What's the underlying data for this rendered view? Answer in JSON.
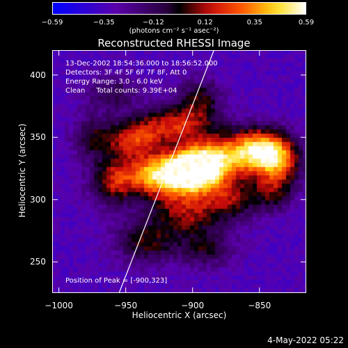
{
  "chart_data": {
    "type": "heatmap",
    "title": "Reconstructed RHESSI Image",
    "xlabel": "Heliocentric X (arcsec)",
    "ylabel": "Heliocentric Y (arcsec)",
    "xlim": [
      -1005,
      -815
    ],
    "ylim": [
      225,
      420
    ],
    "x_ticks": [
      "−1000",
      "−950",
      "−900",
      "−850"
    ],
    "x_tick_values": [
      -1000,
      -950,
      -900,
      -850
    ],
    "y_ticks": [
      "250",
      "300",
      "350",
      "400"
    ],
    "y_tick_values": [
      250,
      300,
      350,
      400
    ],
    "colorbar": {
      "min": -0.59,
      "max": 0.59,
      "ticks": [
        "−0.59",
        "−0.35",
        "−0.12",
        "0.12",
        "0.35",
        "0.59"
      ],
      "tick_values": [
        -0.59,
        -0.35,
        -0.12,
        0.12,
        0.35,
        0.59
      ],
      "units": "(photons cm⁻² s⁻¹ asec⁻²)"
    },
    "peak": {
      "x": -900,
      "y": 323
    },
    "limb_line": [
      [
        -955,
        225
      ],
      [
        -884,
        420
      ]
    ],
    "colors": {
      "low": "#0000ff",
      "mid_neg": "#6a0fb0",
      "zero": "#000000",
      "mid": "#e0200a",
      "high": "#ffff40",
      "top": "#ffffff"
    }
  },
  "info": {
    "line1": "13-Dec-2002 18:54:36.000 to 18:56:52.000",
    "line2": "Detectors: 3F 4F 5F 6F 7F 8F, Att 0",
    "line3": "Energy Range: 3.0 - 6.0 keV",
    "line4": "Clean     Total counts: 9.39E+04",
    "peak_text": "Position of Peak = [-900,323]"
  },
  "footer": {
    "date": "4-May-2022 05:22"
  }
}
